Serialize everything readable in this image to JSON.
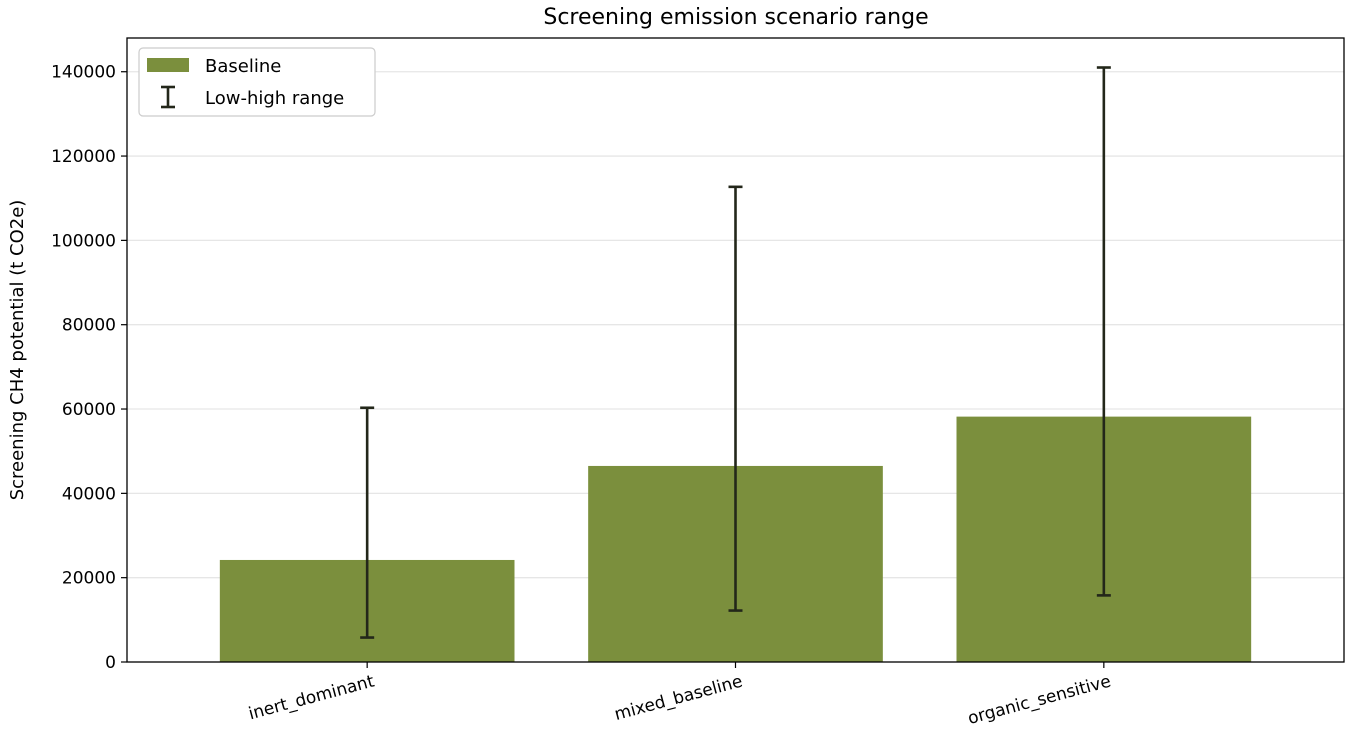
{
  "chart_data": {
    "type": "bar",
    "title": "Screening emission scenario range",
    "xlabel": "",
    "ylabel": "Screening CH4 potential (t CO2e)",
    "categories": [
      "inert_dominant",
      "mixed_baseline",
      "organic_sensitive"
    ],
    "series": [
      {
        "name": "Baseline",
        "color": "#7b8f3d",
        "values": [
          24200,
          46500,
          58200
        ]
      }
    ],
    "error_range": {
      "name": "Low-high range",
      "color": "#23271a",
      "low": [
        5800,
        12200,
        15800
      ],
      "high": [
        60300,
        112700,
        141000
      ]
    },
    "ylim": [
      0,
      148000
    ],
    "yticks": [
      0,
      20000,
      40000,
      60000,
      80000,
      100000,
      120000,
      140000
    ],
    "grid": "y",
    "legend_position": "upper-left"
  }
}
